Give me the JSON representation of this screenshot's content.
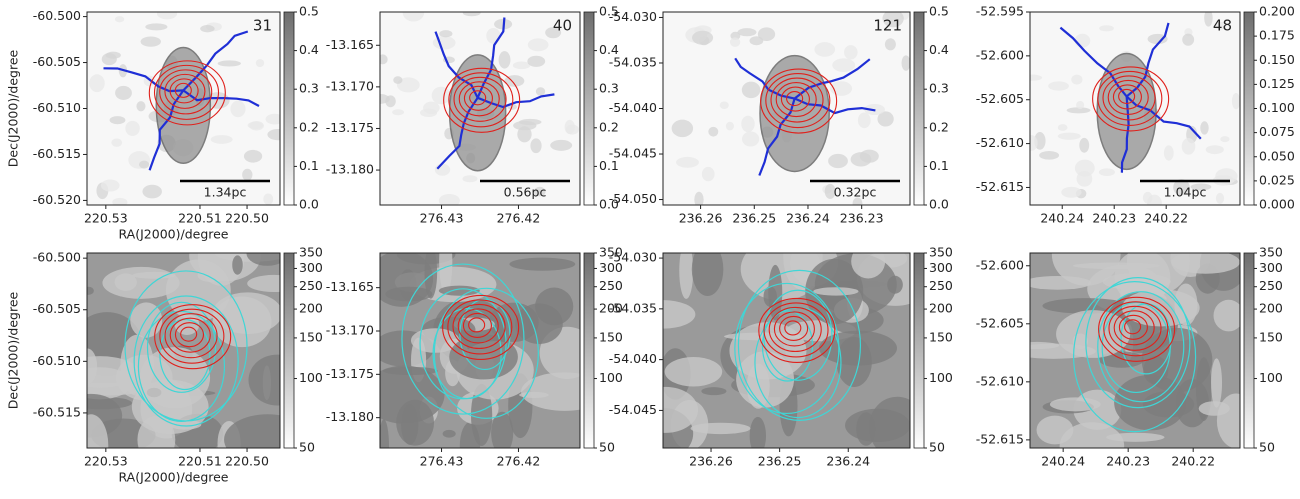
{
  "chart_data": [
    {
      "type": "image",
      "annotation": "31",
      "scale_bar": "1.34pc",
      "y_label": "Dec(J2000)/degree",
      "x_label": "RA(J2000)/degree",
      "xlim": [
        220.534,
        220.493
      ],
      "xticks": [
        220.53,
        220.51,
        {
          "value": 220.5,
          "label": "220.50"
        }
      ],
      "ylim": [
        -60.5205,
        -60.4995
      ],
      "yticks": [
        {
          "value": -60.5,
          "label": "-60.500"
        },
        -60.505,
        {
          "value": -60.51,
          "label": "-60.510"
        },
        -60.515,
        {
          "value": -60.52,
          "label": "-60.520"
        }
      ],
      "clim": [
        0,
        0.5
      ],
      "cticks": [
        {
          "value": 0,
          "label": "0.0"
        },
        0.1,
        0.2,
        0.3,
        0.4,
        0.5
      ],
      "clog": false
    },
    {
      "type": "image",
      "annotation": "40",
      "scale_bar": "0.56pc",
      "xlim": [
        276.438,
        276.412
      ],
      "xticks": [
        276.43,
        276.42
      ],
      "ylim": [
        -13.1842,
        -13.161
      ],
      "yticks": [
        -13.165,
        {
          "value": -13.17,
          "label": "-13.170"
        },
        -13.175,
        {
          "value": -13.18,
          "label": "-13.180"
        }
      ],
      "clim": [
        0,
        0.5
      ],
      "cticks": [
        {
          "value": 0,
          "label": "0.0"
        },
        0.1,
        0.2,
        0.3,
        0.4,
        0.5
      ],
      "clog": false
    },
    {
      "type": "image",
      "annotation": "121",
      "scale_bar": "0.32pc",
      "xlim": [
        236.267,
        236.221
      ],
      "xticks": [
        236.26,
        236.25,
        236.24,
        236.23
      ],
      "ylim": [
        -54.0506,
        -54.0294
      ],
      "yticks": [
        {
          "value": -54.03,
          "label": "-54.030"
        },
        -54.035,
        {
          "value": -54.04,
          "label": "-54.040"
        },
        -54.045,
        {
          "value": -54.05,
          "label": "-54.050"
        }
      ],
      "clim": [
        0,
        0.5
      ],
      "cticks": [
        {
          "value": 0,
          "label": "0.0"
        },
        0.1,
        0.2,
        0.3,
        0.4,
        0.5
      ],
      "clog": false
    },
    {
      "type": "image",
      "annotation": "48",
      "scale_bar": "1.04pc",
      "xlim": [
        240.2462,
        240.2058
      ],
      "xticks": [
        240.24,
        240.23,
        240.22
      ],
      "ylim": [
        -52.617,
        -52.595
      ],
      "yticks": [
        -52.595,
        {
          "value": -52.6,
          "label": "-52.600"
        },
        -52.605,
        {
          "value": -52.61,
          "label": "-52.610"
        },
        -52.615
      ],
      "clim": [
        0,
        0.2
      ],
      "cticks": [
        {
          "value": 0,
          "label": "0.000"
        },
        0.025,
        {
          "value": 0.05,
          "label": "0.050"
        },
        0.075,
        {
          "value": 0.1,
          "label": "0.100"
        },
        0.125,
        {
          "value": 0.15,
          "label": "0.150"
        },
        0.175,
        {
          "value": 0.2,
          "label": "0.200"
        }
      ],
      "clog": false
    },
    {
      "type": "image",
      "y_label": "Dec(J2000)/degree",
      "x_label": "RA(J2000)/degree",
      "xlim": [
        220.534,
        220.493
      ],
      "xticks": [
        220.53,
        220.51,
        {
          "value": 220.5,
          "label": "220.50"
        }
      ],
      "ylim": [
        -60.5184,
        -60.4995
      ],
      "yticks": [
        {
          "value": -60.5,
          "label": "-60.500"
        },
        -60.505,
        {
          "value": -60.51,
          "label": "-60.510"
        },
        -60.515
      ],
      "clim": [
        50,
        350
      ],
      "cticks": [
        50,
        100,
        150,
        200,
        250,
        300,
        350
      ],
      "clog": true
    },
    {
      "type": "image",
      "xlim": [
        276.438,
        276.412
      ],
      "xticks": [
        276.43,
        276.42
      ],
      "ylim": [
        -13.1835,
        -13.161
      ],
      "yticks": [
        -13.165,
        {
          "value": -13.17,
          "label": "-13.170"
        },
        -13.175,
        {
          "value": -13.18,
          "label": "-13.180"
        }
      ],
      "clim": [
        50,
        350
      ],
      "cticks": [
        50,
        100,
        150,
        200,
        250,
        300,
        350
      ],
      "clog": true
    },
    {
      "type": "image",
      "xlim": [
        236.267,
        236.231
      ],
      "xticks": [
        236.26,
        236.25,
        236.24
      ],
      "ylim": [
        -54.0487,
        -54.0295
      ],
      "yticks": [
        {
          "value": -54.03,
          "label": "-54.030"
        },
        -54.035,
        {
          "value": -54.04,
          "label": "-54.040"
        },
        -54.045
      ],
      "clim": [
        50,
        350
      ],
      "cticks": [
        50,
        100,
        150,
        200,
        250,
        300,
        350
      ],
      "clog": true
    },
    {
      "type": "image",
      "xlim": [
        240.2451,
        240.2128
      ],
      "xticks": [
        240.24,
        240.23,
        240.22
      ],
      "ylim": [
        -52.6157,
        -52.5989
      ],
      "yticks": [
        {
          "value": -52.6,
          "label": "-52.600"
        },
        -52.605,
        {
          "value": -52.61,
          "label": "-52.610"
        },
        -52.615
      ],
      "clim": [
        50,
        350
      ],
      "cticks": [
        50,
        100,
        150,
        200,
        250,
        300,
        350
      ],
      "clog": true
    }
  ]
}
